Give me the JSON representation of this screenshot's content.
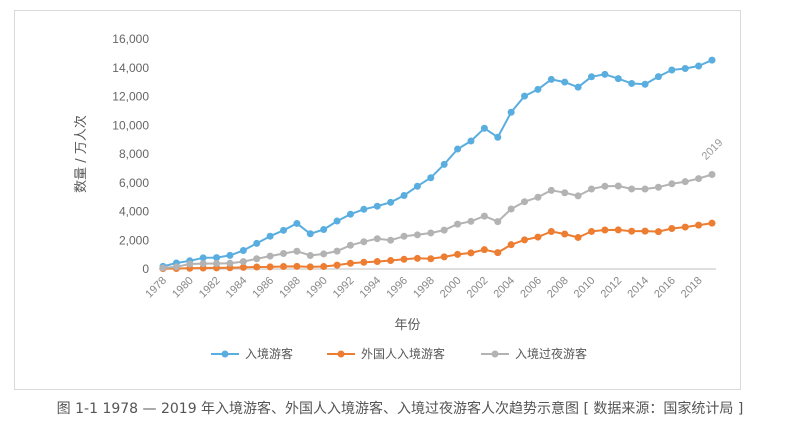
{
  "caption": "图 1-1  1978 — 2019 年入境游客、外国人入境游客、入境过夜游客人次趋势示意图 [ 数据来源：国家统计局 ]",
  "chart_data": {
    "type": "line",
    "xlabel": "年份",
    "ylabel": "数量 / 万人次",
    "ylim": [
      0,
      16000
    ],
    "yticks": [
      0,
      2000,
      4000,
      6000,
      8000,
      10000,
      12000,
      14000,
      16000
    ],
    "ytick_labels": [
      "0",
      "2,000",
      "4,000",
      "6,000",
      "8,000",
      "10,000",
      "12,000",
      "14,000",
      "16,000"
    ],
    "xtick_labels": [
      "1978",
      "1980",
      "1982",
      "1984",
      "1986",
      "1988",
      "1990",
      "1992",
      "1994",
      "1996",
      "1998",
      "2000",
      "2002",
      "2004",
      "2006",
      "2008",
      "2010",
      "2012",
      "2014",
      "2016",
      "2018"
    ],
    "x": [
      1978,
      1979,
      1980,
      1981,
      1982,
      1983,
      1984,
      1985,
      1986,
      1987,
      1988,
      1989,
      1990,
      1991,
      1992,
      1993,
      1994,
      1995,
      1996,
      1997,
      1998,
      1999,
      2000,
      2001,
      2002,
      2003,
      2004,
      2005,
      2006,
      2007,
      2008,
      2009,
      2010,
      2011,
      2012,
      2013,
      2014,
      2015,
      2016,
      2017,
      2018,
      2019
    ],
    "annotation": "2019",
    "grid": false,
    "legend_position": "bottom",
    "series": [
      {
        "name": "入境游客",
        "color": "#5aaedf",
        "values": [
          181,
          420,
          570,
          777,
          792,
          948,
          1285,
          1783,
          2282,
          2690,
          3169,
          2450,
          2746,
          3335,
          3812,
          4153,
          4368,
          4639,
          5113,
          5759,
          6348,
          7280,
          8344,
          8901,
          9791,
          9166,
          10904,
          12029,
          12494,
          13187,
          13003,
          12648,
          13376,
          13542,
          13241,
          12908,
          12850,
          13382,
          13844,
          13948,
          14120,
          14531
        ]
      },
      {
        "name": "外国人入境游客",
        "color": "#ed7d31",
        "values": [
          23,
          36,
          53,
          68,
          76,
          87,
          113,
          137,
          148,
          173,
          184,
          146,
          175,
          271,
          402,
          466,
          518,
          589,
          674,
          743,
          711,
          843,
          1016,
          1122,
          1344,
          1140,
          1693,
          2026,
          2221,
          2611,
          2433,
          2194,
          2613,
          2711,
          2719,
          2629,
          2636,
          2599,
          2815,
          2917,
          3054,
          3188
        ]
      },
      {
        "name": "入境过夜游客",
        "color": "#b3b3b3",
        "values": [
          72,
          152,
          350,
          376,
          380,
          400,
          514,
          713,
          900,
          1076,
          1236,
          936,
          1048,
          1246,
          1651,
          1898,
          2107,
          2003,
          2276,
          2377,
          2507,
          2705,
          3123,
          3317,
          3680,
          3297,
          4176,
          4681,
          4991,
          5472,
          5305,
          5088,
          5566,
          5758,
          5772,
          5569,
          5562,
          5689,
          5927,
          6074,
          6290,
          6573
        ]
      }
    ]
  }
}
